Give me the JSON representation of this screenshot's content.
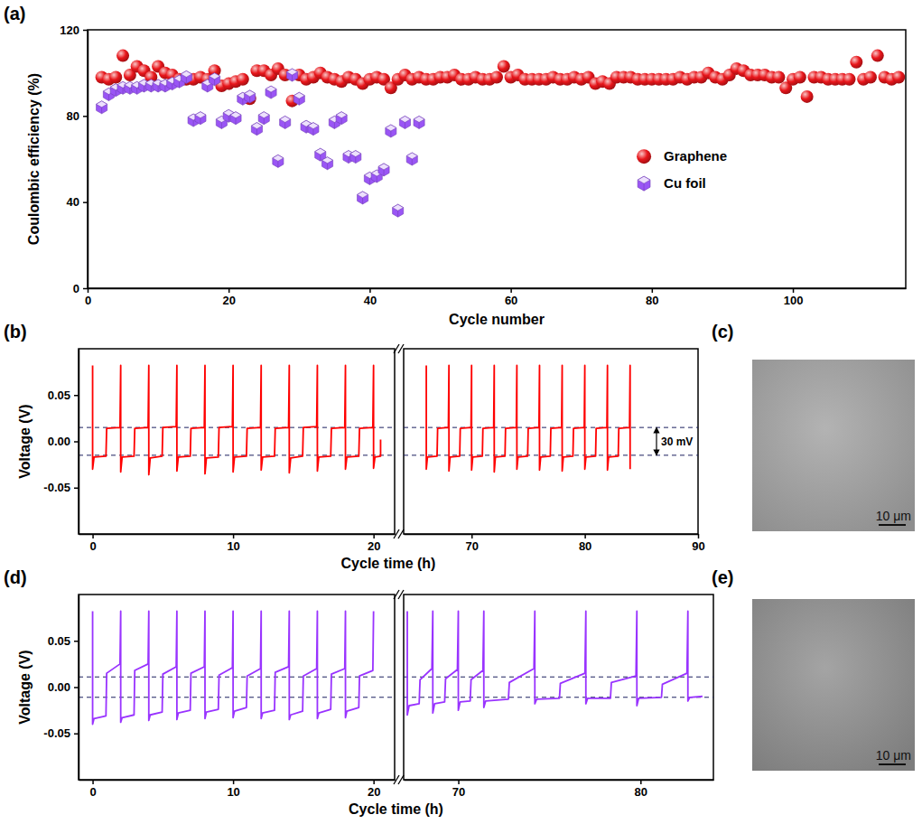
{
  "chart_data": [
    {
      "panel": "(a)",
      "type": "scatter",
      "x_label": "Cycle number",
      "y_label": "Coulombic efficiency (%)",
      "xlim": [
        0,
        116
      ],
      "ylim": [
        0,
        120
      ],
      "xticks": [
        0,
        20,
        40,
        60,
        80,
        100
      ],
      "yticks": [
        0,
        40,
        80,
        120
      ],
      "legend": "right",
      "x": [
        2,
        3,
        4,
        5,
        6,
        7,
        8,
        9,
        10,
        11,
        12,
        13,
        14,
        15,
        16,
        17,
        18,
        19,
        20,
        21,
        22,
        23,
        24,
        25,
        26,
        27,
        28,
        29,
        30,
        31,
        32,
        33,
        34,
        35,
        36,
        37,
        38,
        39,
        40,
        41,
        42,
        43,
        44,
        45,
        46,
        47,
        48,
        49,
        50,
        51,
        52,
        53,
        54,
        55,
        56,
        57,
        58,
        59,
        60,
        61,
        62,
        63,
        64,
        65,
        66,
        67,
        68,
        69,
        70,
        71,
        72,
        73,
        74,
        75,
        76,
        77,
        78,
        79,
        80,
        81,
        82,
        83,
        84,
        85,
        86,
        87,
        88,
        89,
        90,
        91,
        92,
        93,
        94,
        95,
        96,
        97,
        98,
        99,
        100,
        101,
        102,
        103,
        104,
        105,
        106,
        107,
        108,
        109,
        110,
        111,
        112,
        113,
        114,
        115
      ],
      "series": [
        {
          "name": "Graphene",
          "color": "#e8161b",
          "marker": "circle",
          "values": [
            98,
            97,
            98,
            108,
            99,
            103,
            101,
            98,
            103,
            100,
            99,
            97,
            97,
            97,
            98,
            97,
            101,
            94,
            95,
            96,
            97,
            88,
            101,
            101,
            99,
            102,
            99,
            87,
            99,
            97,
            98,
            100,
            98,
            97,
            96,
            98,
            97,
            95,
            97,
            98,
            97,
            93,
            97,
            99,
            97,
            98,
            97,
            97,
            98,
            98,
            99,
            97,
            97,
            98,
            97,
            97,
            98,
            103,
            98,
            99,
            97,
            97,
            97,
            97,
            98,
            97,
            97,
            98,
            97,
            98,
            95,
            96,
            95,
            98,
            98,
            98,
            97,
            97,
            97,
            97,
            97,
            97,
            98,
            97,
            98,
            98,
            100,
            98,
            97,
            99,
            102,
            101,
            99,
            99,
            99,
            98,
            98,
            93,
            97,
            98,
            89,
            98,
            98,
            97,
            97,
            97,
            97,
            105,
            97,
            98,
            108,
            98,
            97,
            98
          ]
        },
        {
          "name": "Cu foil",
          "color": "#9a55f5",
          "marker": "hexagon",
          "values": [
            84,
            90,
            92,
            93,
            93,
            93,
            94,
            94,
            94,
            94,
            95,
            96,
            98,
            78,
            79,
            94,
            97,
            77,
            80,
            79,
            88,
            89,
            74,
            79,
            91,
            59,
            77,
            99,
            88,
            75,
            74,
            62,
            58,
            77,
            79,
            61,
            61,
            42,
            51,
            52,
            55,
            73,
            36,
            77,
            60,
            77,
            null,
            null,
            null,
            null,
            null,
            null,
            null,
            null,
            null,
            null,
            null,
            null,
            null,
            null,
            null,
            null,
            null,
            null,
            null,
            null,
            null,
            null,
            null,
            null,
            null,
            null,
            null,
            null,
            null,
            null,
            null,
            null,
            null,
            null,
            null,
            null,
            null,
            null,
            null,
            null,
            null,
            null,
            null,
            null,
            null,
            null,
            null,
            null,
            null,
            null,
            null,
            null,
            null,
            null,
            null,
            null,
            null,
            null,
            null,
            null,
            null,
            null,
            null,
            null,
            null,
            null,
            null,
            null
          ]
        }
      ]
    },
    {
      "panel": "(b)",
      "type": "line",
      "x_label": "Cycle time (h)",
      "y_label": "Voltage (V)",
      "xlim": [
        -1,
        21.5
      ],
      "ylim": [
        -0.1,
        0.1
      ],
      "xticks": [
        0,
        10,
        20
      ],
      "yticks": [
        -0.05,
        {
          "value": 0,
          "label": "0.00"
        },
        0.05
      ],
      "color": "#ff0000",
      "reference_lines": [
        0.015,
        -0.015
      ],
      "x": [
        0,
        0,
        0.1,
        0.95,
        1,
        1.95,
        2,
        2,
        2.1,
        2.95,
        3,
        3.95,
        4,
        4,
        4.1,
        4.95,
        5,
        5.95,
        6,
        6,
        6.1,
        6.95,
        7,
        7.95,
        8,
        8,
        8.1,
        8.95,
        9,
        9.95,
        10,
        10,
        10.1,
        10.95,
        11,
        11.95,
        12,
        12,
        12.1,
        12.95,
        13,
        13.95,
        14,
        14,
        14.1,
        14.95,
        15,
        15.95,
        16,
        16,
        16.1,
        16.95,
        17,
        17.95,
        18,
        18,
        18.1,
        18.95,
        19,
        19.95,
        20,
        20,
        20.1,
        20.5,
        20.5
      ],
      "values": [
        0.082,
        -0.03,
        -0.017,
        -0.016,
        0.014,
        0.015,
        0.082,
        -0.033,
        -0.017,
        -0.016,
        0.014,
        0.015,
        0.082,
        -0.036,
        -0.018,
        -0.016,
        0.015,
        0.016,
        0.082,
        -0.032,
        -0.017,
        -0.016,
        0.014,
        0.015,
        0.082,
        -0.035,
        -0.018,
        -0.017,
        0.015,
        0.016,
        0.082,
        -0.033,
        -0.017,
        -0.016,
        0.014,
        0.015,
        0.082,
        -0.031,
        -0.017,
        -0.016,
        0.014,
        0.015,
        0.082,
        -0.034,
        -0.018,
        -0.016,
        0.015,
        0.016,
        0.082,
        -0.032,
        -0.017,
        -0.016,
        0.014,
        0.015,
        0.082,
        -0.03,
        -0.017,
        -0.016,
        0.014,
        0.015,
        0.082,
        -0.029,
        -0.017,
        -0.016,
        0.002
      ]
    },
    {
      "type": "line",
      "tick_labels": "x",
      "xlim": [
        64,
        90
      ],
      "ylim": [
        -0.1,
        0.1
      ],
      "xticks": [
        70,
        80,
        90
      ],
      "color": "#ff0000",
      "reference_lines": [
        0.015,
        -0.015
      ],
      "annotation": "30 mV",
      "x": [
        66,
        66,
        66.1,
        66.95,
        67,
        67.95,
        68,
        68,
        68.1,
        68.95,
        69,
        69.95,
        70,
        70,
        70.1,
        70.95,
        71,
        71.95,
        72,
        72,
        72.1,
        72.95,
        73,
        73.95,
        74,
        74,
        74.1,
        74.95,
        75,
        75.95,
        76,
        76,
        76.1,
        76.95,
        77,
        77.95,
        78,
        78,
        78.1,
        78.95,
        79,
        79.95,
        80,
        80,
        80.1,
        80.95,
        81,
        81.95,
        82,
        82,
        82.1,
        82.95,
        83,
        83.95,
        84,
        84
      ],
      "values": [
        0.082,
        -0.03,
        -0.017,
        -0.016,
        0.014,
        0.015,
        0.082,
        -0.032,
        -0.017,
        -0.016,
        0.014,
        0.015,
        0.082,
        -0.031,
        -0.017,
        -0.016,
        0.014,
        0.015,
        0.082,
        -0.033,
        -0.017,
        -0.016,
        0.014,
        0.015,
        0.082,
        -0.03,
        -0.017,
        -0.016,
        0.014,
        0.015,
        0.082,
        -0.031,
        -0.017,
        -0.016,
        0.014,
        0.015,
        0.082,
        -0.032,
        -0.017,
        -0.016,
        0.014,
        0.015,
        0.082,
        -0.03,
        -0.017,
        -0.016,
        0.014,
        0.015,
        0.082,
        -0.031,
        -0.017,
        -0.016,
        0.014,
        0.015,
        0.082,
        -0.03
      ]
    },
    {
      "panel": "(c)",
      "type": "image",
      "scale_bar": "10 μm"
    },
    {
      "panel": "(d)",
      "type": "line",
      "x_label": "Cycle time (h)",
      "y_label": "Voltage (V)",
      "xlim": [
        -1,
        21.5
      ],
      "ylim": [
        -0.1,
        0.1
      ],
      "xticks": [
        0,
        10,
        20
      ],
      "yticks": [
        -0.05,
        {
          "value": 0,
          "label": "0.00"
        },
        0.05
      ],
      "color": "#9933ff",
      "reference_lines": [
        0.011,
        -0.011
      ],
      "x": [
        0,
        0,
        0.1,
        0.95,
        1,
        1.95,
        2,
        2,
        2.1,
        2.95,
        3,
        3.95,
        4,
        4,
        4.1,
        4.95,
        5,
        5.95,
        6,
        6,
        6.1,
        6.95,
        7,
        7.95,
        8,
        8,
        8.1,
        8.95,
        9,
        9.95,
        10,
        10,
        10.1,
        10.95,
        11,
        11.95,
        12,
        12,
        12.1,
        12.95,
        13,
        13.95,
        14,
        14,
        14.1,
        14.95,
        15,
        15.95,
        16,
        16,
        16.1,
        16.95,
        17,
        17.95,
        18,
        18,
        18.1,
        18.95,
        19,
        19.95,
        20
      ],
      "values": [
        0.082,
        -0.04,
        -0.034,
        -0.031,
        0.015,
        0.025,
        0.082,
        -0.038,
        -0.033,
        -0.03,
        0.018,
        0.025,
        0.082,
        -0.036,
        -0.03,
        -0.027,
        0.014,
        0.022,
        0.082,
        -0.035,
        -0.028,
        -0.025,
        0.015,
        0.022,
        0.082,
        -0.034,
        -0.027,
        -0.024,
        0.013,
        0.021,
        0.082,
        -0.033,
        -0.026,
        -0.022,
        0.012,
        0.02,
        0.082,
        -0.034,
        -0.028,
        -0.025,
        0.016,
        0.022,
        0.082,
        -0.035,
        -0.03,
        -0.026,
        0.012,
        0.02,
        0.082,
        -0.034,
        -0.028,
        -0.024,
        0.014,
        0.02,
        0.082,
        -0.033,
        -0.026,
        -0.022,
        0.012,
        0.018,
        0.082
      ]
    },
    {
      "type": "line",
      "tick_labels": "x",
      "xlim": [
        67,
        84
      ],
      "ylim": [
        -0.1,
        0.1
      ],
      "xticks": [
        70,
        80
      ],
      "color": "#9933ff",
      "reference_lines": [
        0.011,
        -0.011
      ],
      "x": [
        67.2,
        67.2,
        67.3,
        67.85,
        67.9,
        68.55,
        68.6,
        68.6,
        68.7,
        69.25,
        69.3,
        69.95,
        70,
        70,
        70.1,
        70.65,
        70.7,
        71.35,
        71.4,
        71.4,
        71.5,
        72.75,
        72.8,
        74.15,
        74.2,
        74.2,
        74.3,
        75.55,
        75.6,
        76.95,
        77,
        77,
        77.1,
        78.35,
        78.4,
        79.75,
        79.8,
        79.8,
        79.9,
        81.15,
        81.2,
        82.55,
        82.6,
        82.6,
        82.7,
        83.4
      ],
      "values": [
        0.082,
        -0.03,
        -0.02,
        -0.018,
        0.008,
        0.02,
        0.082,
        -0.028,
        -0.018,
        -0.016,
        0.009,
        0.019,
        0.082,
        -0.025,
        -0.016,
        -0.015,
        0.008,
        0.018,
        0.082,
        -0.022,
        -0.015,
        -0.013,
        0.005,
        0.02,
        0.082,
        -0.018,
        -0.013,
        -0.012,
        0.004,
        0.015,
        0.082,
        -0.018,
        -0.012,
        -0.012,
        0.005,
        0.012,
        0.082,
        -0.02,
        -0.012,
        -0.011,
        0.003,
        0.015,
        0.082,
        -0.015,
        -0.011,
        -0.01
      ]
    },
    {
      "panel": "(e)",
      "type": "image",
      "scale_bar": "10 μm"
    }
  ]
}
